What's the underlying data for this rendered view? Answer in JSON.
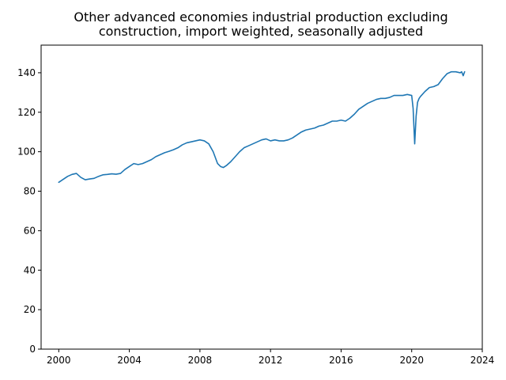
{
  "chart_data": {
    "type": "line",
    "title_lines": [
      "Other advanced economies industrial production excluding",
      "construction, import weighted, seasonally adjusted"
    ],
    "xlabel": "",
    "ylabel": "",
    "xlim": [
      1999.0,
      2024.0
    ],
    "ylim": [
      0,
      154
    ],
    "x_ticks": [
      2000,
      2004,
      2008,
      2012,
      2016,
      2020,
      2024
    ],
    "y_ticks": [
      0,
      20,
      40,
      60,
      80,
      100,
      120,
      140
    ],
    "grid": false,
    "line_color": "#1f77b4",
    "series": [
      {
        "x": [
          2000.0,
          2000.25,
          2000.5,
          2000.75,
          2001.0,
          2001.25,
          2001.5,
          2001.75,
          2002.0,
          2002.25,
          2002.5,
          2002.75,
          2003.0,
          2003.25,
          2003.5,
          2003.75,
          2004.0,
          2004.25,
          2004.5,
          2004.75,
          2005.0,
          2005.25,
          2005.5,
          2005.75,
          2006.0,
          2006.25,
          2006.5,
          2006.75,
          2007.0,
          2007.25,
          2007.5,
          2007.75,
          2008.0,
          2008.25,
          2008.5,
          2008.75,
          2009.0,
          2009.17,
          2009.33,
          2009.5,
          2009.75,
          2010.0,
          2010.25,
          2010.5,
          2010.75,
          2011.0,
          2011.25,
          2011.5,
          2011.75,
          2012.0,
          2012.25,
          2012.5,
          2012.75,
          2013.0,
          2013.25,
          2013.5,
          2013.75,
          2014.0,
          2014.25,
          2014.5,
          2014.75,
          2015.0,
          2015.25,
          2015.5,
          2015.75,
          2016.0,
          2016.25,
          2016.5,
          2016.75,
          2017.0,
          2017.25,
          2017.5,
          2017.75,
          2018.0,
          2018.25,
          2018.5,
          2018.75,
          2019.0,
          2019.25,
          2019.5,
          2019.75,
          2020.0,
          2020.08,
          2020.17,
          2020.25,
          2020.33,
          2020.42,
          2020.5,
          2020.75,
          2021.0,
          2021.25,
          2021.5,
          2021.75,
          2022.0,
          2022.25,
          2022.5,
          2022.75,
          2022.83,
          2022.92,
          2023.0
        ],
        "y": [
          84.5,
          86,
          87.5,
          88.5,
          89,
          87,
          85.8,
          86.2,
          86.5,
          87.5,
          88.3,
          88.5,
          88.8,
          88.6,
          89,
          91,
          92.5,
          94,
          93.5,
          94,
          95,
          96,
          97.5,
          98.5,
          99.5,
          100.2,
          101,
          102,
          103.5,
          104.5,
          105,
          105.5,
          106,
          105.5,
          104,
          100,
          94,
          92.5,
          92,
          93,
          95,
          97.5,
          100,
          102,
          103,
          104,
          105,
          106,
          106.5,
          105.5,
          106,
          105.5,
          105.5,
          106,
          107,
          108.5,
          110,
          111,
          111.5,
          112,
          113,
          113.5,
          114.5,
          115.5,
          115.5,
          116,
          115.5,
          117,
          119,
          121.5,
          123,
          124.5,
          125.5,
          126.5,
          127,
          127,
          127.5,
          128.5,
          128.5,
          128.5,
          129,
          128.5,
          122,
          104,
          118,
          125,
          127,
          128,
          130.5,
          132.5,
          133,
          134,
          137,
          139.5,
          140.5,
          140.5,
          140,
          140.5,
          138.5,
          140.5
        ]
      }
    ]
  }
}
